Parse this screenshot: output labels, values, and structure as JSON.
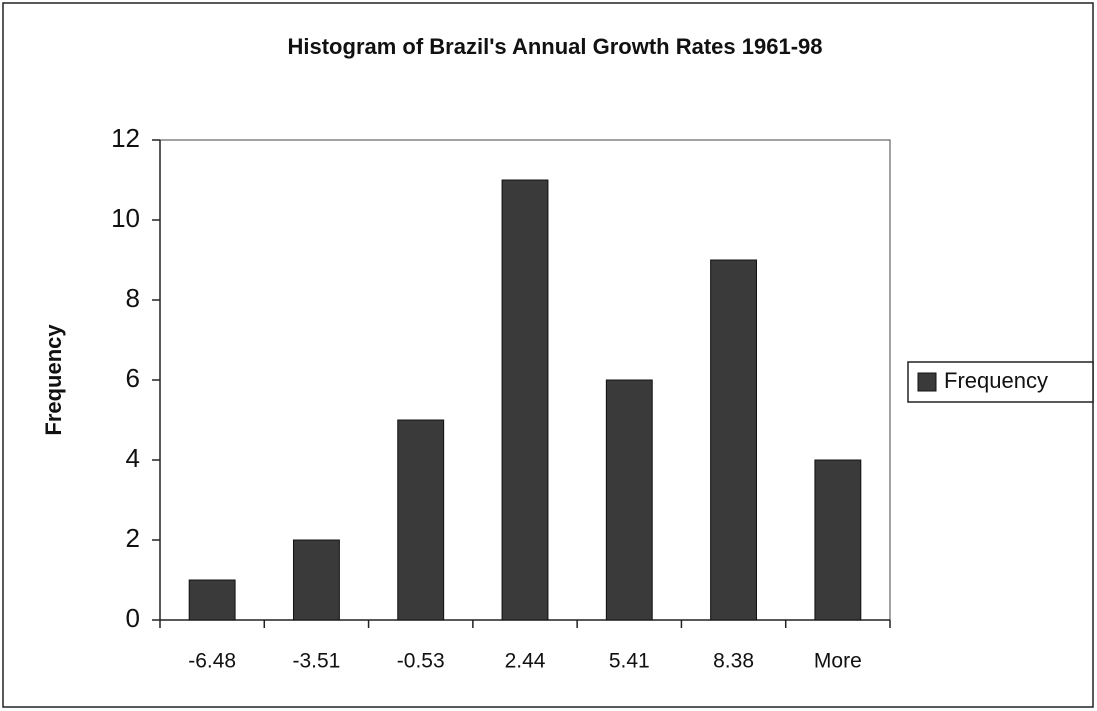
{
  "chart_data": {
    "type": "bar",
    "title": "Histogram of Brazil's Annual Growth Rates 1961-98",
    "ylabel": "Frequency",
    "categories": [
      "-6.48",
      "-3.51",
      "-0.53",
      "2.44",
      "5.41",
      "8.38",
      "More"
    ],
    "series": [
      {
        "name": "Frequency",
        "color": "#3a3a3a",
        "values": [
          1,
          2,
          5,
          11,
          6,
          9,
          4
        ]
      }
    ],
    "ylim": [
      0,
      12
    ],
    "yticks": [
      0,
      2,
      4,
      6,
      8,
      10,
      12
    ],
    "grid": false,
    "legend": "right"
  }
}
